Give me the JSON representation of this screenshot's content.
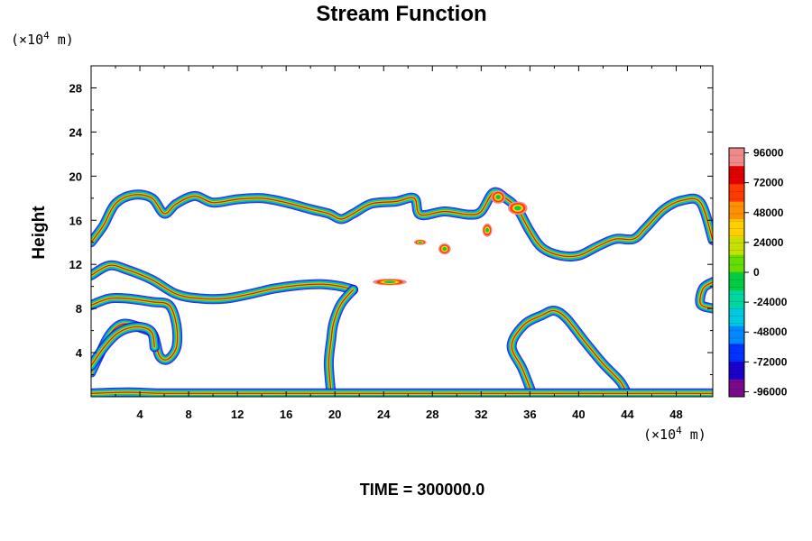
{
  "chart_data": {
    "type": "heatmap",
    "title": "Stream Function",
    "ylabel": "Height",
    "xlabel": "",
    "x_unit": "(×10",
    "x_unit_exp": "4",
    "x_unit_tail": " m)",
    "y_unit": "(×10",
    "y_unit_exp": "4",
    "y_unit_tail": " m)",
    "xlim": [
      0,
      51
    ],
    "ylim": [
      0,
      30
    ],
    "x_ticks": [
      "4",
      "8",
      "12",
      "16",
      "20",
      "24",
      "28",
      "32",
      "36",
      "40",
      "44",
      "48"
    ],
    "y_ticks": [
      "4",
      "8",
      "12",
      "16",
      "20",
      "24",
      "28"
    ],
    "colorbar": {
      "range": [
        -100000,
        100000
      ],
      "tick_labels": [
        "96000",
        "72000",
        "48000",
        "24000",
        "0",
        "-24000",
        "-48000",
        "-72000",
        "-96000"
      ],
      "colors": [
        "#7a0a8a",
        "#1a00c8",
        "#0033ff",
        "#0088ff",
        "#00c8e0",
        "#00d7a0",
        "#00cc44",
        "#66dd00",
        "#c8e000",
        "#ffd000",
        "#ff9000",
        "#ff3a00",
        "#e00000",
        "#f08a8a"
      ]
    },
    "contour_bands": [
      {
        "name": "upper-band",
        "points": [
          [
            0,
            14
          ],
          [
            1,
            15.5
          ],
          [
            2,
            17.5
          ],
          [
            3.5,
            18.3
          ],
          [
            5,
            18
          ],
          [
            6,
            16.6
          ],
          [
            7,
            17.5
          ],
          [
            8.5,
            18.2
          ],
          [
            10,
            17.6
          ],
          [
            12,
            17.9
          ],
          [
            14,
            18
          ],
          [
            16,
            17.6
          ],
          [
            18,
            17
          ],
          [
            19.5,
            16.6
          ],
          [
            20.5,
            16.1
          ],
          [
            21.5,
            16.6
          ],
          [
            23,
            17.5
          ],
          [
            25,
            17.7
          ],
          [
            26.5,
            18
          ],
          [
            27,
            16.5
          ],
          [
            29,
            16.8
          ],
          [
            31,
            16.5
          ],
          [
            32,
            16.8
          ],
          [
            33,
            18.5
          ],
          [
            34,
            18
          ],
          [
            35,
            17
          ],
          [
            36,
            15
          ],
          [
            37,
            13.5
          ],
          [
            38.5,
            12.8
          ],
          [
            40,
            12.8
          ],
          [
            41.5,
            13.6
          ],
          [
            43,
            14.3
          ],
          [
            44.5,
            14.3
          ],
          [
            45.5,
            15.3
          ],
          [
            47,
            17
          ],
          [
            48.5,
            17.8
          ],
          [
            50,
            17.6
          ],
          [
            51,
            14.2
          ]
        ]
      },
      {
        "name": "middle-band",
        "points": [
          [
            0,
            11
          ],
          [
            1.5,
            11.9
          ],
          [
            3,
            11.5
          ],
          [
            5,
            10.6
          ],
          [
            7,
            9.3
          ],
          [
            9,
            8.9
          ],
          [
            11,
            8.9
          ],
          [
            13,
            9.3
          ],
          [
            15,
            9.8
          ],
          [
            17,
            10.1
          ],
          [
            19,
            10.2
          ],
          [
            20.5,
            10
          ],
          [
            21.5,
            9.7
          ]
        ]
      },
      {
        "name": "middle-lower-band",
        "points": [
          [
            0,
            8.3
          ],
          [
            1.5,
            8.9
          ],
          [
            3,
            8.9
          ],
          [
            5,
            8.6
          ],
          [
            6.4,
            8.3
          ],
          [
            7,
            6.5
          ],
          [
            7,
            4.5
          ],
          [
            6.3,
            3.4
          ],
          [
            5.6,
            3.7
          ],
          [
            5.1,
            5.6
          ],
          [
            4.2,
            6.2
          ],
          [
            2.6,
            6.6
          ],
          [
            1.5,
            5.6
          ],
          [
            0.6,
            3.6
          ],
          [
            0,
            2.2
          ]
        ]
      },
      {
        "name": "center-vertical-band",
        "points": [
          [
            21.5,
            9.7
          ],
          [
            20.5,
            8.4
          ],
          [
            19.9,
            6.7
          ],
          [
            19.7,
            5.2
          ],
          [
            19.5,
            3
          ],
          [
            19.7,
            0.2
          ]
        ]
      },
      {
        "name": "lower-right-loop",
        "points": [
          [
            36.2,
            0.2
          ],
          [
            35.4,
            2.5
          ],
          [
            34.5,
            4.6
          ],
          [
            35.5,
            6.5
          ],
          [
            37,
            7.4
          ],
          [
            38,
            7.8
          ],
          [
            39,
            7.1
          ],
          [
            40.5,
            5
          ],
          [
            42,
            3
          ],
          [
            43.4,
            1.4
          ],
          [
            44,
            0.2
          ]
        ]
      },
      {
        "name": "left-low-band",
        "points": [
          [
            0,
            2.8
          ],
          [
            1,
            4.4
          ],
          [
            2,
            5.6
          ],
          [
            3,
            6.2
          ],
          [
            4.2,
            6.3
          ],
          [
            5,
            5.8
          ],
          [
            5.2,
            4.5
          ]
        ]
      },
      {
        "name": "bottom-band",
        "points": [
          [
            0,
            0.3
          ],
          [
            3,
            0.4
          ],
          [
            6,
            0.3
          ],
          [
            12,
            0.3
          ],
          [
            19.5,
            0.3
          ],
          [
            22,
            0.3
          ],
          [
            26,
            0.3
          ],
          [
            36,
            0.3
          ],
          [
            44,
            0.3
          ],
          [
            51,
            0.3
          ]
        ]
      },
      {
        "name": "right-edge-band",
        "points": [
          [
            51,
            10.4
          ],
          [
            50.2,
            9.8
          ],
          [
            50,
            8.4
          ],
          [
            51,
            8
          ]
        ]
      }
    ],
    "contour_blobs": [
      {
        "name": "blob-upper-1",
        "cx": 27,
        "cy": 14,
        "rx": 0.5,
        "ry": 0.25
      },
      {
        "name": "blob-upper-2",
        "cx": 29,
        "cy": 13.4,
        "rx": 0.5,
        "ry": 0.5
      },
      {
        "name": "blob-mid-1",
        "cx": 24.5,
        "cy": 10.4,
        "rx": 1.4,
        "ry": 0.3
      },
      {
        "name": "blob-left-1",
        "cx": 32.5,
        "cy": 15.1,
        "rx": 0.4,
        "ry": 0.6
      },
      {
        "name": "blob-ring-1",
        "cx": 33.4,
        "cy": 18.1,
        "rx": 0.6,
        "ry": 0.6
      },
      {
        "name": "blob-ring-2",
        "cx": 35,
        "cy": 17.1,
        "rx": 0.8,
        "ry": 0.6
      }
    ],
    "time_label": "TIME = 300000.0"
  }
}
